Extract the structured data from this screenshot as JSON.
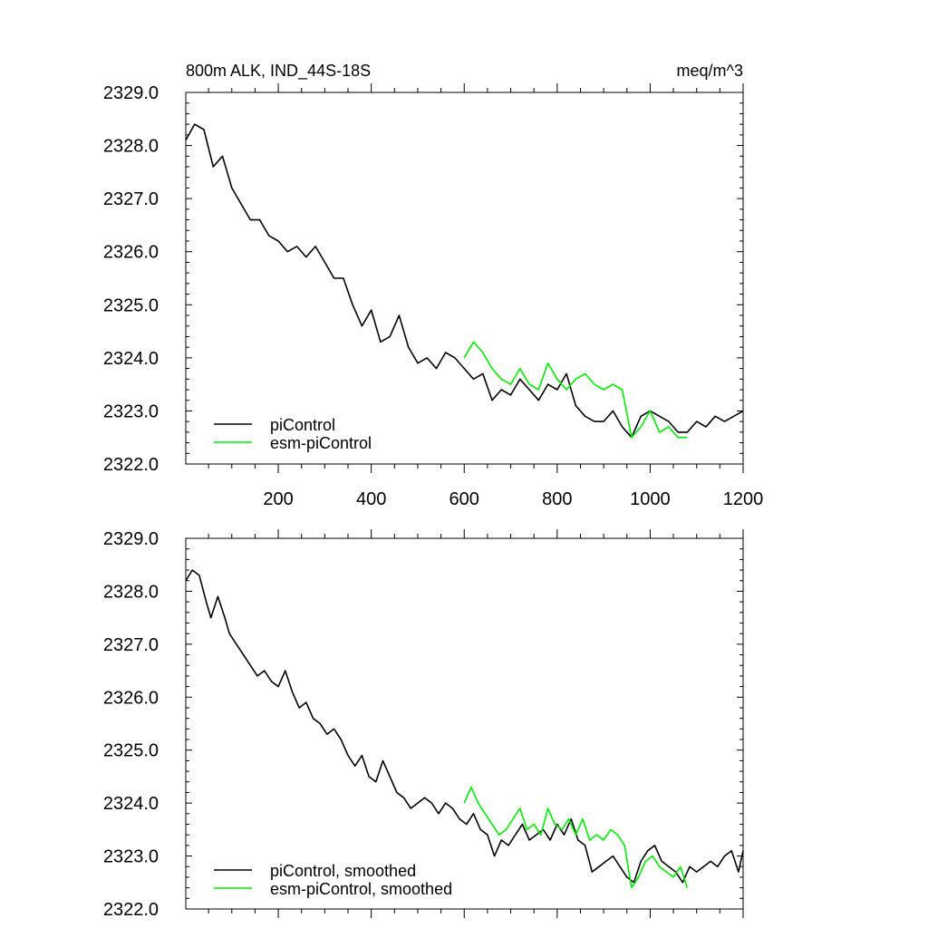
{
  "chart_data": [
    {
      "type": "line",
      "title_left": "800m ALK, IND_44S-18S",
      "title_right": "meq/m^3",
      "xlabel": "",
      "ylabel": "",
      "xlim": [
        1,
        1200
      ],
      "ylim": [
        2322.0,
        2329.0
      ],
      "x_ticks": [
        200,
        400,
        600,
        800,
        1000,
        1200
      ],
      "x_tick_labels": [
        "200",
        "400",
        "600",
        "800",
        "1000",
        "1200"
      ],
      "y_ticks": [
        2322.0,
        2323.0,
        2324.0,
        2325.0,
        2326.0,
        2327.0,
        2328.0,
        2329.0
      ],
      "y_tick_labels": [
        "2322.0",
        "2323.0",
        "2324.0",
        "2325.0",
        "2326.0",
        "2327.0",
        "2328.0",
        "2329.0"
      ],
      "grid": false,
      "legend_position": "bottom-left",
      "legend": [
        "piControl",
        "esm-piControl"
      ],
      "series": [
        {
          "name": "piControl",
          "color": "#000000",
          "x": [
            1,
            20,
            40,
            60,
            80,
            100,
            120,
            140,
            160,
            180,
            200,
            220,
            240,
            260,
            280,
            300,
            320,
            340,
            360,
            380,
            400,
            420,
            440,
            460,
            480,
            500,
            520,
            540,
            560,
            580,
            600,
            620,
            640,
            660,
            680,
            700,
            720,
            740,
            760,
            780,
            800,
            820,
            840,
            860,
            880,
            900,
            920,
            940,
            960,
            980,
            1000,
            1020,
            1040,
            1060,
            1080,
            1100,
            1120,
            1140,
            1160,
            1180,
            1200
          ],
          "values": [
            2328.1,
            2328.4,
            2328.3,
            2327.6,
            2327.8,
            2327.2,
            2326.9,
            2326.6,
            2326.6,
            2326.3,
            2326.2,
            2326.0,
            2326.1,
            2325.9,
            2326.1,
            2325.8,
            2325.5,
            2325.5,
            2325.0,
            2324.6,
            2324.9,
            2324.3,
            2324.4,
            2324.8,
            2324.2,
            2323.9,
            2324.0,
            2323.8,
            2324.1,
            2324.0,
            2323.8,
            2323.6,
            2323.7,
            2323.2,
            2323.4,
            2323.3,
            2323.6,
            2323.4,
            2323.2,
            2323.5,
            2323.4,
            2323.7,
            2323.1,
            2322.9,
            2322.8,
            2322.8,
            2323.0,
            2322.7,
            2322.5,
            2322.9,
            2323.0,
            2322.9,
            2322.8,
            2322.6,
            2322.6,
            2322.8,
            2322.7,
            2322.9,
            2322.8,
            2322.9,
            2323.0
          ]
        },
        {
          "name": "esm-piControl",
          "color": "#00ee00",
          "x": [
            600,
            620,
            640,
            660,
            680,
            700,
            720,
            740,
            760,
            780,
            800,
            820,
            840,
            860,
            880,
            900,
            920,
            940,
            960,
            980,
            1000,
            1020,
            1040,
            1060,
            1080
          ],
          "values": [
            2324.0,
            2324.3,
            2324.1,
            2323.8,
            2323.6,
            2323.5,
            2323.8,
            2323.5,
            2323.4,
            2323.9,
            2323.6,
            2323.4,
            2323.6,
            2323.7,
            2323.5,
            2323.4,
            2323.5,
            2323.4,
            2322.5,
            2322.7,
            2323.0,
            2322.6,
            2322.7,
            2322.5,
            2322.5
          ]
        }
      ]
    },
    {
      "type": "line",
      "xlabel": "",
      "ylabel": "",
      "xlim": [
        1,
        1200
      ],
      "ylim": [
        2322.0,
        2329.0
      ],
      "y_ticks": [
        2322.0,
        2323.0,
        2324.0,
        2325.0,
        2326.0,
        2327.0,
        2328.0,
        2329.0
      ],
      "y_tick_labels": [
        "2322.0",
        "2323.0",
        "2324.0",
        "2325.0",
        "2326.0",
        "2327.0",
        "2328.0",
        "2329.0"
      ],
      "grid": false,
      "legend_position": "bottom-left",
      "legend": [
        "piControl, smoothed",
        "esm-piControl, smoothed"
      ],
      "series": [
        {
          "name": "piControl, smoothed",
          "color": "#000000",
          "x": [
            1,
            15,
            30,
            45,
            55,
            70,
            85,
            95,
            110,
            125,
            140,
            155,
            170,
            185,
            200,
            215,
            230,
            245,
            260,
            275,
            290,
            305,
            320,
            335,
            350,
            365,
            380,
            395,
            410,
            425,
            440,
            455,
            470,
            485,
            500,
            515,
            530,
            545,
            560,
            575,
            590,
            605,
            620,
            635,
            650,
            665,
            680,
            695,
            710,
            725,
            740,
            755,
            770,
            785,
            800,
            815,
            830,
            845,
            860,
            875,
            890,
            905,
            920,
            935,
            950,
            965,
            980,
            995,
            1010,
            1025,
            1040,
            1055,
            1070,
            1085,
            1100,
            1115,
            1130,
            1145,
            1160,
            1175,
            1190,
            1200
          ],
          "values": [
            2328.2,
            2328.4,
            2328.3,
            2327.8,
            2327.5,
            2327.9,
            2327.5,
            2327.2,
            2327.0,
            2326.8,
            2326.6,
            2326.4,
            2326.5,
            2326.3,
            2326.2,
            2326.5,
            2326.1,
            2325.8,
            2325.9,
            2325.6,
            2325.5,
            2325.3,
            2325.4,
            2325.2,
            2324.9,
            2324.7,
            2324.9,
            2324.5,
            2324.4,
            2324.8,
            2324.5,
            2324.2,
            2324.1,
            2323.9,
            2324.0,
            2324.1,
            2324.0,
            2323.8,
            2324.0,
            2323.9,
            2323.7,
            2323.6,
            2323.8,
            2323.5,
            2323.4,
            2323.0,
            2323.3,
            2323.2,
            2323.4,
            2323.6,
            2323.3,
            2323.4,
            2323.5,
            2323.3,
            2323.6,
            2323.4,
            2323.7,
            2323.3,
            2323.2,
            2322.7,
            2322.8,
            2322.9,
            2323.0,
            2322.8,
            2322.6,
            2322.5,
            2322.9,
            2323.1,
            2323.2,
            2322.9,
            2322.8,
            2322.7,
            2322.5,
            2322.8,
            2322.7,
            2322.8,
            2322.9,
            2322.8,
            2323.0,
            2323.1,
            2322.7,
            2323.1
          ]
        },
        {
          "name": "esm-piControl, smoothed",
          "color": "#00ee00",
          "x": [
            600,
            615,
            630,
            645,
            660,
            675,
            690,
            705,
            720,
            735,
            750,
            765,
            780,
            795,
            810,
            825,
            840,
            855,
            870,
            885,
            900,
            915,
            930,
            945,
            960,
            975,
            990,
            1005,
            1020,
            1035,
            1050,
            1065,
            1080
          ],
          "values": [
            2324.0,
            2324.3,
            2324.0,
            2323.8,
            2323.6,
            2323.4,
            2323.5,
            2323.7,
            2323.9,
            2323.5,
            2323.6,
            2323.4,
            2323.9,
            2323.6,
            2323.5,
            2323.7,
            2323.4,
            2323.7,
            2323.3,
            2323.4,
            2323.3,
            2323.5,
            2323.4,
            2323.2,
            2322.4,
            2322.6,
            2322.9,
            2323.0,
            2322.8,
            2322.7,
            2322.6,
            2322.8,
            2322.4
          ]
        }
      ]
    }
  ]
}
